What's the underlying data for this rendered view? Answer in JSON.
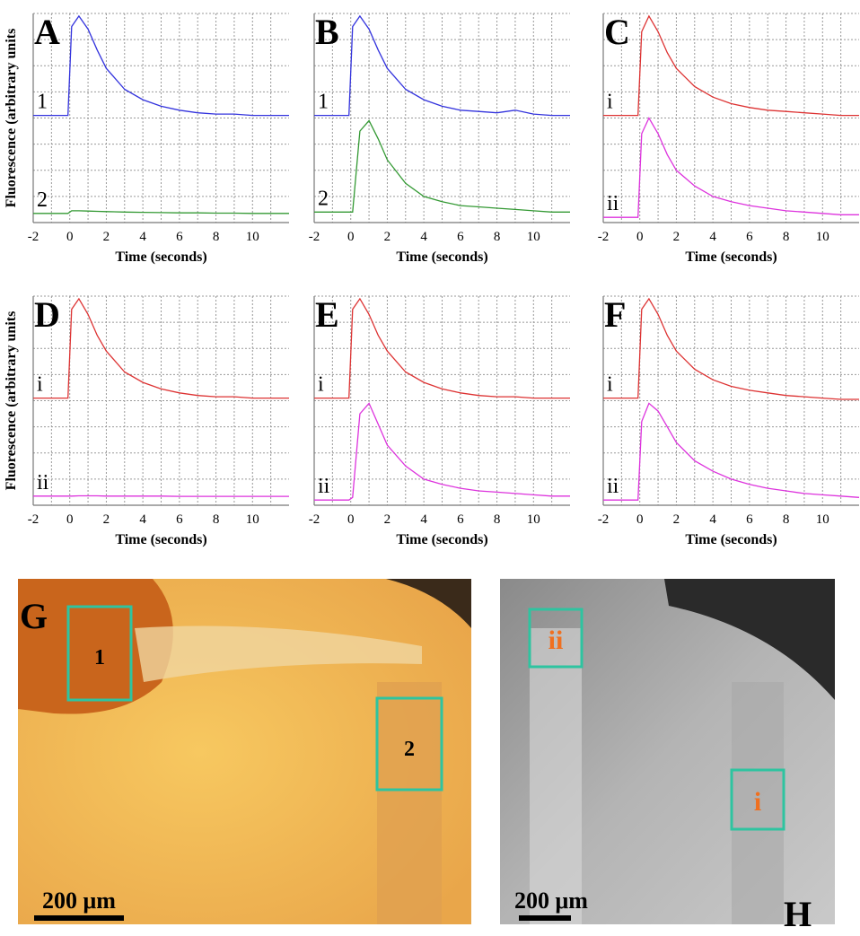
{
  "chart_data": [
    {
      "type": "line",
      "panel": "A",
      "xlabel": "Time (seconds)",
      "ylabel": "Fluorescence (arbitrary units",
      "xlim": [
        -2,
        12
      ],
      "xticks": [
        -2,
        0,
        2,
        4,
        6,
        8,
        10
      ],
      "ylim": [
        0,
        8
      ],
      "yticks": [
        0,
        1,
        2,
        3,
        4,
        5,
        6,
        7,
        8
      ],
      "grid": true,
      "x": [
        -2,
        -1,
        -0.1,
        0.1,
        0.5,
        1,
        1.5,
        2,
        3,
        4,
        5,
        6,
        7,
        8,
        9,
        10,
        11,
        12
      ],
      "series": [
        {
          "name": "1",
          "color": "#3333dd",
          "values": [
            4.1,
            4.1,
            4.1,
            7.5,
            7.9,
            7.4,
            6.6,
            5.9,
            5.1,
            4.7,
            4.45,
            4.3,
            4.2,
            4.15,
            4.15,
            4.1,
            4.1,
            4.1
          ]
        },
        {
          "name": "2",
          "color": "#339933",
          "values": [
            0.35,
            0.35,
            0.35,
            0.45,
            0.45,
            0.44,
            0.43,
            0.42,
            0.4,
            0.39,
            0.38,
            0.37,
            0.37,
            0.36,
            0.36,
            0.35,
            0.35,
            0.35
          ]
        }
      ]
    },
    {
      "type": "line",
      "panel": "B",
      "xlabel": "Time (seconds)",
      "xlim": [
        -2,
        12
      ],
      "xticks": [
        -2,
        0,
        2,
        4,
        6,
        8,
        10
      ],
      "ylim": [
        0,
        8
      ],
      "yticks": [
        0,
        1,
        2,
        3,
        4,
        5,
        6,
        7,
        8
      ],
      "grid": true,
      "x": [
        -2,
        -1,
        -0.1,
        0.1,
        0.5,
        1,
        1.5,
        2,
        3,
        4,
        5,
        6,
        7,
        8,
        9,
        10,
        11,
        12
      ],
      "series": [
        {
          "name": "1",
          "color": "#3333dd",
          "values": [
            4.1,
            4.1,
            4.1,
            7.5,
            7.9,
            7.4,
            6.6,
            5.9,
            5.1,
            4.7,
            4.45,
            4.3,
            4.25,
            4.2,
            4.3,
            4.15,
            4.1,
            4.1
          ]
        },
        {
          "name": "2",
          "color": "#339933",
          "values": [
            0.4,
            0.4,
            0.4,
            0.4,
            3.5,
            3.9,
            3.2,
            2.4,
            1.5,
            1.0,
            0.8,
            0.65,
            0.6,
            0.55,
            0.5,
            0.45,
            0.4,
            0.4
          ]
        }
      ]
    },
    {
      "type": "line",
      "panel": "C",
      "xlabel": "Time (seconds)",
      "xlim": [
        -2,
        12
      ],
      "xticks": [
        -2,
        0,
        2,
        4,
        6,
        8,
        10
      ],
      "ylim": [
        0,
        8
      ],
      "yticks": [
        0,
        1,
        2,
        3,
        4,
        5,
        6,
        7,
        8
      ],
      "grid": true,
      "x": [
        -2,
        -1,
        -0.1,
        0.1,
        0.5,
        1,
        1.5,
        2,
        3,
        4,
        5,
        6,
        7,
        8,
        9,
        10,
        11,
        12
      ],
      "series": [
        {
          "name": "i",
          "color": "#dd3333",
          "values": [
            4.1,
            4.1,
            4.1,
            7.3,
            7.9,
            7.3,
            6.5,
            5.9,
            5.2,
            4.8,
            4.55,
            4.4,
            4.3,
            4.25,
            4.2,
            4.15,
            4.1,
            4.1
          ]
        },
        {
          "name": "ii",
          "color": "#dd33dd",
          "values": [
            0.2,
            0.2,
            0.2,
            3.4,
            4.0,
            3.4,
            2.6,
            2.0,
            1.4,
            1.0,
            0.8,
            0.65,
            0.55,
            0.45,
            0.4,
            0.35,
            0.3,
            0.3
          ]
        }
      ]
    },
    {
      "type": "line",
      "panel": "D",
      "xlabel": "Time (seconds)",
      "ylabel": "Fluorescence (arbitrary units",
      "xlim": [
        -2,
        12
      ],
      "xticks": [
        -2,
        0,
        2,
        4,
        6,
        8,
        10
      ],
      "ylim": [
        0,
        8
      ],
      "yticks": [
        0,
        1,
        2,
        3,
        4,
        5,
        6,
        7,
        8
      ],
      "grid": true,
      "x": [
        -2,
        -1,
        -0.1,
        0.1,
        0.5,
        1,
        1.5,
        2,
        3,
        4,
        5,
        6,
        7,
        8,
        9,
        10,
        11,
        12
      ],
      "series": [
        {
          "name": "i",
          "color": "#dd3333",
          "values": [
            4.1,
            4.1,
            4.1,
            7.5,
            7.9,
            7.3,
            6.5,
            5.9,
            5.1,
            4.7,
            4.45,
            4.3,
            4.2,
            4.15,
            4.15,
            4.1,
            4.1,
            4.1
          ]
        },
        {
          "name": "ii",
          "color": "#dd33dd",
          "values": [
            0.35,
            0.35,
            0.35,
            0.35,
            0.36,
            0.36,
            0.36,
            0.35,
            0.35,
            0.35,
            0.35,
            0.34,
            0.34,
            0.34,
            0.34,
            0.34,
            0.34,
            0.34
          ]
        }
      ]
    },
    {
      "type": "line",
      "panel": "E",
      "xlabel": "Time (seconds)",
      "xlim": [
        -2,
        12
      ],
      "xticks": [
        -2,
        0,
        2,
        4,
        6,
        8,
        10
      ],
      "ylim": [
        0,
        8
      ],
      "yticks": [
        0,
        1,
        2,
        3,
        4,
        5,
        6,
        7,
        8
      ],
      "grid": true,
      "x": [
        -2,
        -1,
        -0.1,
        0.1,
        0.5,
        1,
        1.5,
        2,
        3,
        4,
        5,
        6,
        7,
        8,
        9,
        10,
        11,
        12
      ],
      "series": [
        {
          "name": "i",
          "color": "#dd3333",
          "values": [
            4.1,
            4.1,
            4.1,
            7.5,
            7.9,
            7.3,
            6.5,
            5.9,
            5.1,
            4.7,
            4.45,
            4.3,
            4.2,
            4.15,
            4.15,
            4.1,
            4.1,
            4.1
          ]
        },
        {
          "name": "ii",
          "color": "#dd33dd",
          "values": [
            0.2,
            0.2,
            0.2,
            0.3,
            3.5,
            3.9,
            3.1,
            2.3,
            1.5,
            1.0,
            0.8,
            0.65,
            0.55,
            0.5,
            0.45,
            0.4,
            0.35,
            0.35
          ]
        }
      ]
    },
    {
      "type": "line",
      "panel": "F",
      "xlabel": "Time (seconds)",
      "xlim": [
        -2,
        12
      ],
      "xticks": [
        -2,
        0,
        2,
        4,
        6,
        8,
        10
      ],
      "ylim": [
        0,
        8
      ],
      "yticks": [
        0,
        1,
        2,
        3,
        4,
        5,
        6,
        7,
        8
      ],
      "grid": true,
      "x": [
        -2,
        -1,
        -0.1,
        0.1,
        0.5,
        1,
        1.5,
        2,
        3,
        4,
        5,
        6,
        7,
        8,
        9,
        10,
        11,
        12
      ],
      "series": [
        {
          "name": "i",
          "color": "#dd3333",
          "values": [
            4.1,
            4.1,
            4.1,
            7.5,
            7.9,
            7.3,
            6.5,
            5.9,
            5.2,
            4.8,
            4.55,
            4.4,
            4.3,
            4.2,
            4.15,
            4.1,
            4.05,
            4.05
          ]
        },
        {
          "name": "ii",
          "color": "#dd33dd",
          "values": [
            0.2,
            0.2,
            0.2,
            3.2,
            3.9,
            3.6,
            3.0,
            2.4,
            1.7,
            1.3,
            1.0,
            0.8,
            0.65,
            0.55,
            0.45,
            0.4,
            0.35,
            0.3
          ]
        }
      ]
    }
  ],
  "images": [
    {
      "label": "G",
      "regions": [
        "1",
        "2"
      ],
      "scale": "200 μm"
    },
    {
      "label": "H",
      "regions": [
        "ii",
        "i"
      ],
      "scale": "200 μm"
    }
  ]
}
